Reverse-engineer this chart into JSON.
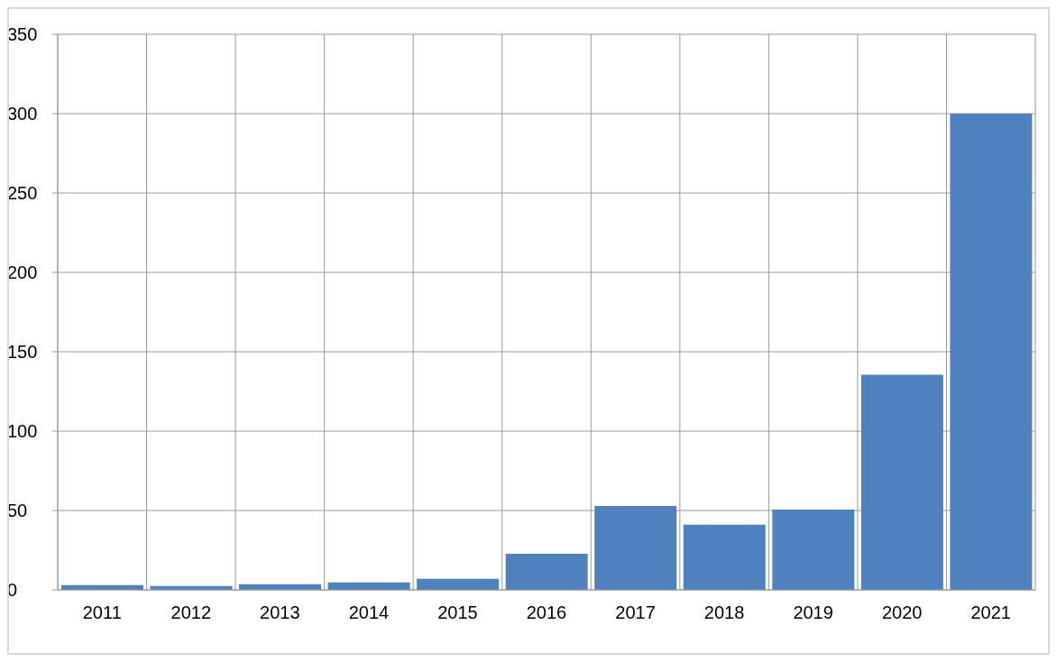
{
  "chart_data": {
    "type": "bar",
    "categories": [
      "2011",
      "2012",
      "2013",
      "2014",
      "2015",
      "2016",
      "2017",
      "2018",
      "2019",
      "2020",
      "2021"
    ],
    "values": [
      3,
      2.4,
      3.6,
      4.7,
      6.9,
      22.7,
      52.9,
      41,
      50.6,
      135.5,
      300
    ],
    "color": "#4f81bd",
    "ylim": [
      0,
      350
    ],
    "yticks": [
      0,
      50,
      100,
      150,
      200,
      250,
      300,
      350
    ],
    "grid": true,
    "legend": false
  }
}
